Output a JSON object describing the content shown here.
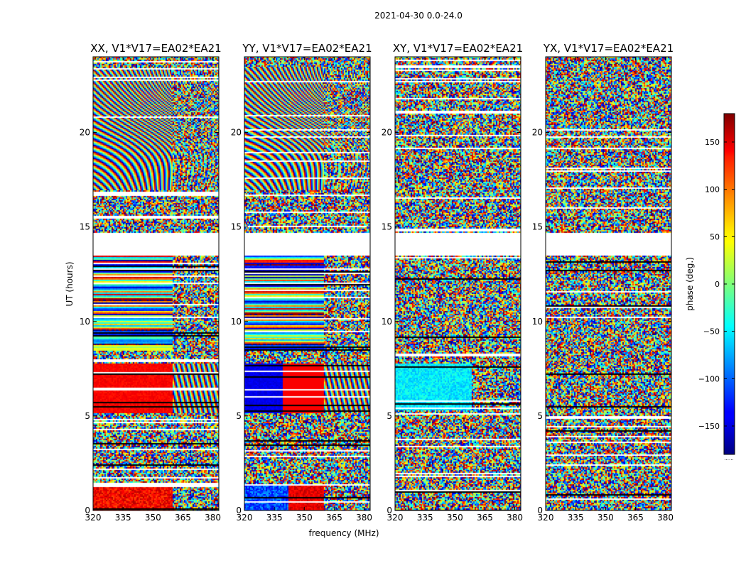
{
  "chart_data": {
    "type": "heatmap",
    "suptitle": "2021-04-30 0.0-24.0",
    "xlabel": "frequency (MHz)",
    "ylabel": "UT (hours)",
    "xlim": [
      320,
      383
    ],
    "ylim": [
      0,
      24
    ],
    "xticks": [
      "320",
      "335",
      "350",
      "365",
      "380"
    ],
    "yticks": [
      "0",
      "5",
      "10",
      "15",
      "20"
    ],
    "panels": [
      {
        "title": "XX, V1*V17=EA02*EA21",
        "pol": "XX"
      },
      {
        "title": "YY, V1*V17=EA02*EA21",
        "pol": "YY"
      },
      {
        "title": "XY, V1*V17=EA02*EA21",
        "pol": "XY"
      },
      {
        "title": "YX, V1*V17=EA02*EA21",
        "pol": "YX"
      }
    ],
    "colorbar": {
      "label": "phase (deg.)",
      "range": [
        -180,
        180
      ],
      "ticks": [
        "150",
        "100",
        "50",
        "0",
        "−50",
        "−100",
        "−150"
      ],
      "colormap": "jet",
      "under_label": "......"
    },
    "flagged_ranges_hours": [
      [
        13.5,
        14.7
      ]
    ]
  }
}
